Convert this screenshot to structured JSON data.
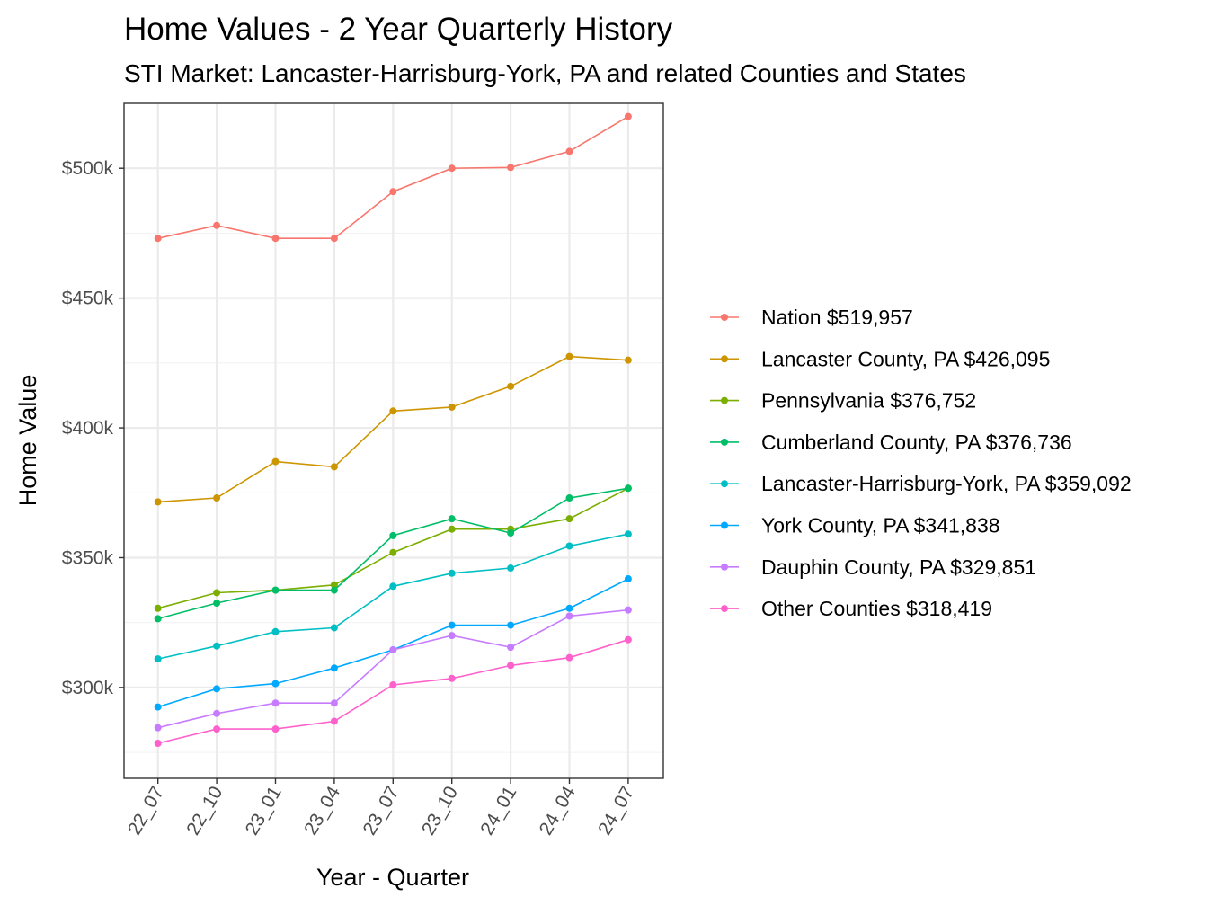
{
  "chart_data": {
    "type": "line",
    "title": "Home Values - 2 Year Quarterly History",
    "subtitle": "STI Market: Lancaster-Harrisburg-York, PA and related Counties and States",
    "xlabel": "Year - Quarter",
    "ylabel": "Home Value",
    "categories": [
      "22_07",
      "22_10",
      "23_01",
      "23_04",
      "23_07",
      "23_10",
      "24_01",
      "24_04",
      "24_07"
    ],
    "ylim": [
      265000,
      525000
    ],
    "yticks": [
      300000,
      350000,
      400000,
      450000,
      500000
    ],
    "ytick_labels": [
      "$300k",
      "$350k",
      "$400k",
      "$450k",
      "$500k"
    ],
    "grid": true,
    "legend_position": "right",
    "series": [
      {
        "name": "Nation $519,957",
        "color": "#F8766D",
        "values": [
          473000,
          478000,
          473000,
          473000,
          491000,
          500000,
          500300,
          506500,
          519957
        ]
      },
      {
        "name": "Lancaster County, PA $426,095",
        "color": "#CD9600",
        "values": [
          371500,
          373000,
          387000,
          385000,
          406500,
          408000,
          416000,
          427500,
          426095
        ]
      },
      {
        "name": "Pennsylvania $376,752",
        "color": "#7CAE00",
        "values": [
          330500,
          336500,
          337500,
          339500,
          352000,
          361000,
          361000,
          365000,
          376752
        ]
      },
      {
        "name": "Cumberland County, PA $376,736",
        "color": "#00BE67",
        "values": [
          326500,
          332500,
          337500,
          337500,
          358500,
          365000,
          359500,
          373000,
          376736
        ]
      },
      {
        "name": "Lancaster-Harrisburg-York, PA $359,092",
        "color": "#00BFC4",
        "values": [
          311000,
          316000,
          321500,
          323000,
          339000,
          344000,
          346000,
          354500,
          359092
        ]
      },
      {
        "name": "York County, PA $341,838",
        "color": "#00A9FF",
        "values": [
          292500,
          299500,
          301500,
          307500,
          314500,
          324000,
          324000,
          330500,
          341838
        ]
      },
      {
        "name": "Dauphin County, PA $329,851",
        "color": "#C77CFF",
        "values": [
          284500,
          290000,
          294000,
          294000,
          314500,
          320000,
          315500,
          327500,
          329851
        ]
      },
      {
        "name": "Other Counties $318,419",
        "color": "#FF61CC",
        "values": [
          278500,
          284000,
          284000,
          287000,
          301000,
          303500,
          308500,
          311500,
          318419
        ]
      }
    ]
  }
}
